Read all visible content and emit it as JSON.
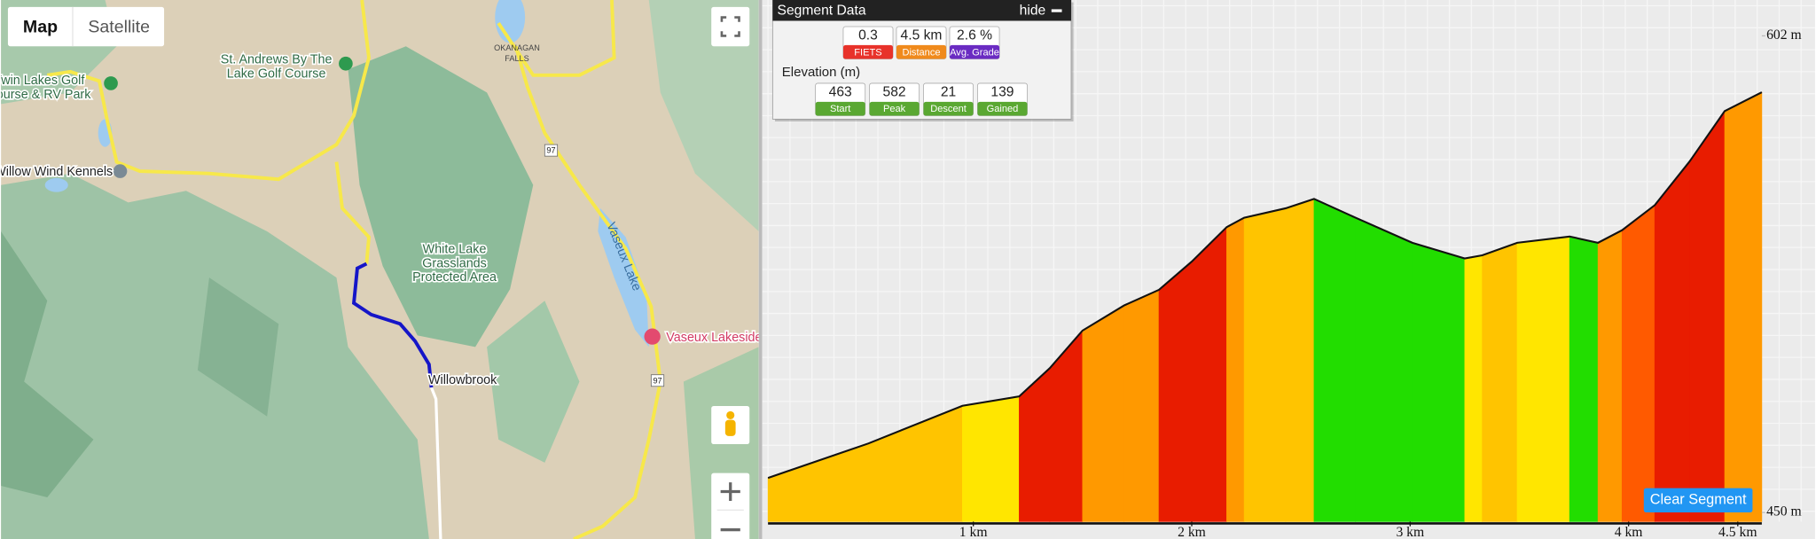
{
  "map": {
    "controls": {
      "map": "Map",
      "satellite": "Satellite"
    },
    "labels": {
      "twin_lakes": [
        "Twin Lakes Golf",
        "Course & RV Park"
      ],
      "st_andrews": [
        "St. Andrews By The",
        "Lake Golf Course"
      ],
      "willow_wind": "Willow Wind Kennels",
      "white_lake": [
        "White Lake",
        "Grasslands",
        "Protected Area"
      ],
      "willowbrook": "Willowbrook",
      "vaseux_lake": "Vaseux Lake",
      "vaseux_lakeside": "Vaseux Lakeside",
      "okanagan_falls": [
        "OKANAGAN",
        "FALLS"
      ],
      "highway": "97"
    }
  },
  "segment": {
    "title": "Segment Data",
    "hide": "hide",
    "stats": [
      {
        "value": 0.3,
        "label": "FIETS"
      },
      {
        "value": "4.5 km",
        "label": "Distance"
      },
      {
        "value": "2.6 %",
        "label": "Avg. Grade"
      }
    ],
    "elevation_title": "Elevation (m)",
    "elevation": [
      {
        "value": 463,
        "label": "Start"
      },
      {
        "value": 582,
        "label": "Peak"
      },
      {
        "value": 21,
        "label": "Descent"
      },
      {
        "value": 139,
        "label": "Gained"
      }
    ],
    "clear_button": "Clear Segment"
  },
  "profile": {
    "x": [
      0.06,
      0.52,
      0.95,
      1.21,
      1.35,
      1.5,
      1.69,
      1.85,
      2.0,
      2.16,
      2.24,
      2.43,
      2.56,
      2.75,
      3.01,
      3.25,
      3.33,
      3.49,
      3.73,
      3.86,
      3.97,
      4.12,
      4.28,
      4.44,
      4.61
    ],
    "y": [
      461,
      472,
      484,
      487,
      496,
      508,
      516,
      521,
      530,
      541,
      544,
      547,
      550,
      544,
      536,
      531,
      532,
      536,
      538,
      536,
      540,
      548,
      562,
      578,
      584
    ],
    "xlim": [
      0.06,
      4.61
    ],
    "ylim": [
      450,
      602
    ],
    "yticks": [
      {
        "value": 602,
        "label": "602 m"
      },
      {
        "value": 450,
        "label": "450 m"
      }
    ],
    "xticks": [
      {
        "value": 1,
        "label": "1 km"
      },
      {
        "value": 2,
        "label": "2 km"
      },
      {
        "value": 3,
        "label": "3 km"
      },
      {
        "value": 4,
        "label": "4 km"
      },
      {
        "value": 4.5,
        "label": "4.5 km"
      }
    ]
  }
}
